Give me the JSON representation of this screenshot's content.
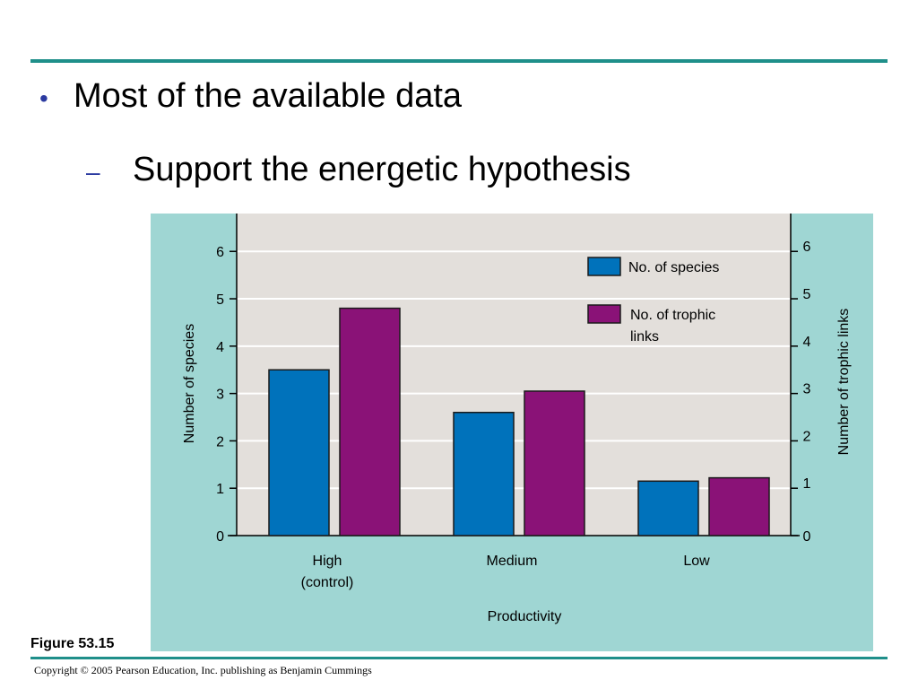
{
  "slide": {
    "bullet_glyph": "•",
    "bullet_text": "Most of the available data",
    "sub_glyph": "–",
    "sub_text": "Support the energetic hypothesis",
    "figure_label": "Figure 53.15",
    "copyright": "Copyright © 2005 Pearson Education, Inc. publishing as Benjamin Cummings"
  },
  "colors": {
    "rule": "#1f8f8a",
    "panel_background": "#9fd6d3",
    "plot_background": "#e3dfdb",
    "gridline": "#ffffff",
    "species": "#0072bb",
    "trophic_links": "#8a1277",
    "bullet": "#2b3aa0"
  },
  "chart_data": {
    "type": "bar",
    "categories": [
      "High\n(control)",
      "Medium",
      "Low"
    ],
    "series": [
      {
        "name": "No. of species",
        "axis": "left",
        "values": [
          3.5,
          2.6,
          1.15
        ]
      },
      {
        "name": "No. of trophic\nlinks",
        "axis": "right",
        "values": [
          4.8,
          3.05,
          1.22
        ]
      }
    ],
    "xlabel": "Productivity",
    "ylabel": "Number of species",
    "ylabel_right": "Number of trophic links",
    "ylim": [
      0,
      6.8
    ],
    "yticks": [
      0,
      1,
      2,
      3,
      4,
      5,
      6
    ],
    "grid": true,
    "legend": "top-right"
  }
}
